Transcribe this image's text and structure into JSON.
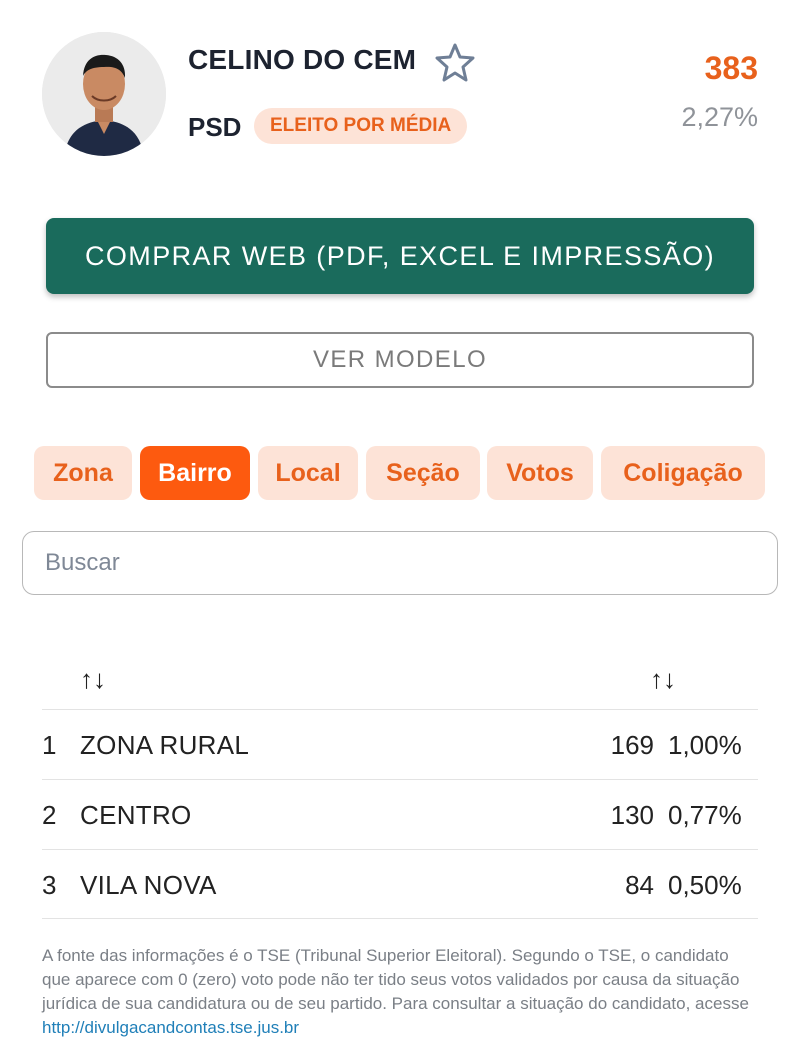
{
  "candidate": {
    "name": "CELINO DO CEM",
    "party": "PSD",
    "status_badge": "ELEITO POR MÉDIA",
    "votes": "383",
    "percent": "2,27%"
  },
  "actions": {
    "buy_label": "COMPRAR WEB (PDF, EXCEL E IMPRESSÃO)",
    "model_label": "VER MODELO"
  },
  "tabs": [
    {
      "label": "Zona",
      "active": false
    },
    {
      "label": "Bairro",
      "active": true
    },
    {
      "label": "Local",
      "active": false
    },
    {
      "label": "Seção",
      "active": false
    },
    {
      "label": "Votos",
      "active": false
    },
    {
      "label": "Coligação",
      "active": false
    }
  ],
  "search": {
    "placeholder": "Buscar"
  },
  "table": {
    "sort_icon": "↑↓",
    "rows": [
      {
        "rank": "1",
        "bairro": "ZONA RURAL",
        "votes": "169",
        "percent": "1,00%"
      },
      {
        "rank": "2",
        "bairro": "CENTRO",
        "votes": "130",
        "percent": "0,77%"
      },
      {
        "rank": "3",
        "bairro": "VILA NOVA",
        "votes": "84",
        "percent": "0,50%"
      }
    ]
  },
  "footer": {
    "text": "A fonte das informações é o TSE (Tribunal Superior Eleitoral). Segundo o TSE, o candidato que aparece com 0 (zero) voto pode não ter tido seus votos validados por causa da situação jurídica de sua candidatura ou de seu partido. Para consultar a situação do candidato, acesse ",
    "link": "http://divulgacandcontas.tse.jus.br"
  },
  "colors": {
    "accent": "#e8611c",
    "tab_active": "#fd5a0f",
    "primary_button": "#1a6b5c"
  },
  "icons": {
    "favorite": "star-icon",
    "sort": "sort-icon"
  }
}
